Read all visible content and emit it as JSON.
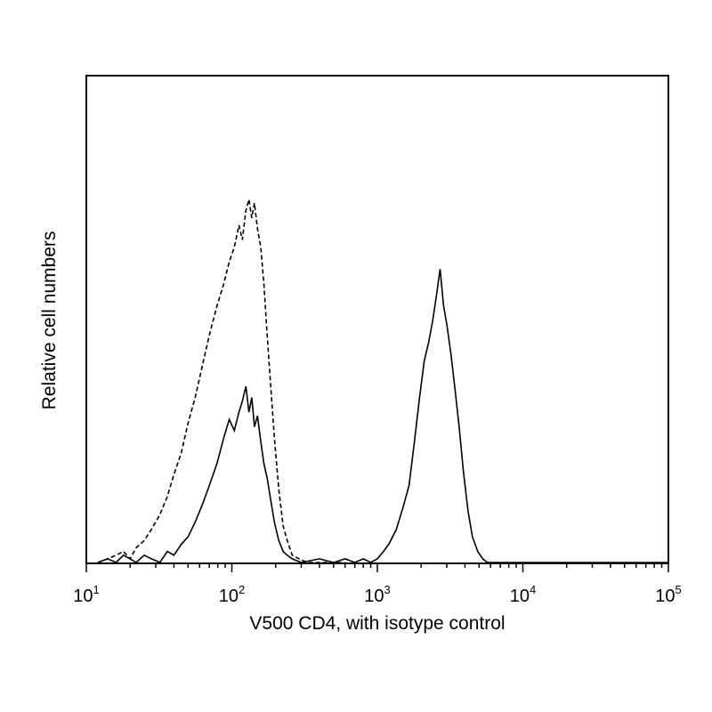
{
  "chart_data": {
    "type": "line",
    "title": "",
    "xlabel": "V500 CD4, with isotype control",
    "ylabel": "Relative cell numbers",
    "x_scale": "log",
    "xlim": [
      10,
      100000
    ],
    "ylim": [
      0,
      100
    ],
    "grid": false,
    "legend": "none",
    "x_ticks": [
      {
        "value": 10,
        "base": "10",
        "exp": "1"
      },
      {
        "value": 100,
        "base": "10",
        "exp": "2"
      },
      {
        "value": 1000,
        "base": "10",
        "exp": "3"
      },
      {
        "value": 10000,
        "base": "10",
        "exp": "4"
      },
      {
        "value": 100000,
        "base": "10",
        "exp": "5"
      }
    ],
    "series": [
      {
        "style": "dashed",
        "color": "#000000",
        "points": [
          [
            12,
            0
          ],
          [
            14,
            1
          ],
          [
            16,
            2
          ],
          [
            18,
            3
          ],
          [
            20,
            1
          ],
          [
            22,
            4
          ],
          [
            25,
            6
          ],
          [
            28,
            9
          ],
          [
            32,
            13
          ],
          [
            36,
            18
          ],
          [
            40,
            24
          ],
          [
            45,
            30
          ],
          [
            50,
            38
          ],
          [
            56,
            45
          ],
          [
            63,
            54
          ],
          [
            70,
            62
          ],
          [
            79,
            70
          ],
          [
            88,
            76
          ],
          [
            96,
            82
          ],
          [
            104,
            86
          ],
          [
            112,
            92
          ],
          [
            118,
            88
          ],
          [
            125,
            96
          ],
          [
            131,
            99
          ],
          [
            137,
            94
          ],
          [
            143,
            98
          ],
          [
            150,
            91
          ],
          [
            158,
            86
          ],
          [
            166,
            76
          ],
          [
            175,
            62
          ],
          [
            185,
            48
          ],
          [
            196,
            34
          ],
          [
            210,
            20
          ],
          [
            225,
            10
          ],
          [
            240,
            6
          ],
          [
            260,
            2
          ],
          [
            290,
            1
          ],
          [
            330,
            0
          ],
          [
            400,
            0
          ],
          [
            600,
            0
          ]
        ]
      },
      {
        "style": "solid",
        "color": "#000000",
        "points": [
          [
            12,
            0
          ],
          [
            14,
            1
          ],
          [
            16,
            0
          ],
          [
            18,
            2
          ],
          [
            20,
            1
          ],
          [
            22,
            0
          ],
          [
            25,
            2
          ],
          [
            28,
            1
          ],
          [
            32,
            0
          ],
          [
            36,
            3
          ],
          [
            40,
            2
          ],
          [
            45,
            5
          ],
          [
            50,
            7
          ],
          [
            56,
            11
          ],
          [
            63,
            16
          ],
          [
            70,
            21
          ],
          [
            79,
            27
          ],
          [
            88,
            34
          ],
          [
            96,
            39
          ],
          [
            104,
            36
          ],
          [
            112,
            41
          ],
          [
            118,
            44
          ],
          [
            125,
            48
          ],
          [
            131,
            41
          ],
          [
            137,
            45
          ],
          [
            143,
            37
          ],
          [
            150,
            40
          ],
          [
            158,
            33
          ],
          [
            166,
            27
          ],
          [
            175,
            23
          ],
          [
            185,
            17
          ],
          [
            196,
            11
          ],
          [
            210,
            6
          ],
          [
            225,
            3
          ],
          [
            240,
            2
          ],
          [
            260,
            1
          ],
          [
            300,
            0
          ],
          [
            400,
            1
          ],
          [
            500,
            0
          ],
          [
            600,
            1
          ],
          [
            700,
            0
          ],
          [
            800,
            1
          ],
          [
            900,
            0
          ],
          [
            1000,
            1
          ],
          [
            1100,
            3
          ],
          [
            1200,
            5
          ],
          [
            1350,
            9
          ],
          [
            1500,
            15
          ],
          [
            1650,
            21
          ],
          [
            1800,
            33
          ],
          [
            1950,
            45
          ],
          [
            2100,
            55
          ],
          [
            2250,
            60
          ],
          [
            2400,
            66
          ],
          [
            2550,
            73
          ],
          [
            2700,
            80
          ],
          [
            2850,
            70
          ],
          [
            3000,
            65
          ],
          [
            3200,
            57
          ],
          [
            3400,
            48
          ],
          [
            3650,
            37
          ],
          [
            3900,
            25
          ],
          [
            4200,
            14
          ],
          [
            4500,
            7
          ],
          [
            4900,
            3
          ],
          [
            5300,
            1
          ],
          [
            5700,
            0
          ],
          [
            8000,
            0
          ],
          [
            20000,
            0
          ],
          [
            100000,
            0
          ]
        ]
      }
    ]
  }
}
